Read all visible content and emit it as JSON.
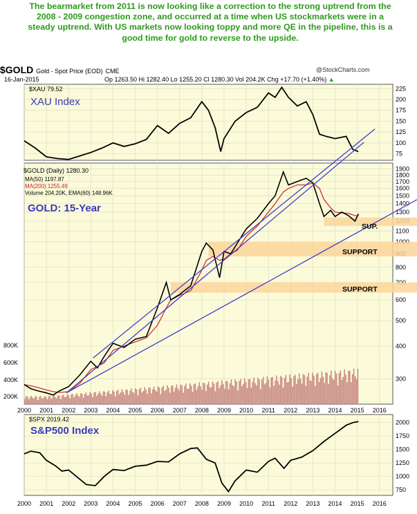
{
  "commentary": "The bearmarket from 2011 is now looking like a correction to the strong uptrend from the 2008 - 2009 congestion zone, and occurred at a time when US stockmarkets were in a steady uptrend. With US markets now looking toppy and more QE in the pipeline, this is a good time for gold to reverse to the upside.",
  "header": {
    "symbol": "$GOLD",
    "description": "Gold - Spot Price (EOD)",
    "exchange": "CME",
    "source": "@StockCharts.com",
    "date": "16-Jan-2015",
    "quote": "Op 1263.50  Hi 1282.40  Lo 1255.20  Cl 1280.30  Vol 204.2K  Chg +17.70 (+1.40%)",
    "quote_arrow": "▲"
  },
  "colors": {
    "panel_bg": "#fbfbda",
    "grid": "#ddddc4",
    "price": "#000000",
    "ma50": "#000000",
    "ma200": "#cc1f1f",
    "volume": "#c98a84",
    "trendline": "#3e3ec8",
    "support_band": "#fcd59a",
    "label_blue": "#3a3aba",
    "commentary": "#2e9a1e"
  },
  "chart_data": [
    {
      "type": "line",
      "panel": "XAU",
      "symbol_label": "$XAU 79.52",
      "title": "XAU Index",
      "yticks": [
        75,
        100,
        125,
        150,
        175,
        200,
        225
      ],
      "ylim": [
        60,
        235
      ],
      "x_years": [
        2000,
        2000.5,
        2001,
        2001.5,
        2002,
        2002.5,
        2003,
        2003.5,
        2004,
        2004.5,
        2005,
        2005.5,
        2006,
        2006.5,
        2007,
        2007.5,
        2008,
        2008.3,
        2008.6,
        2008.85,
        2009,
        2009.5,
        2010,
        2010.5,
        2011,
        2011.3,
        2011.6,
        2011.9,
        2012.3,
        2012.7,
        2013,
        2013.3,
        2013.6,
        2014,
        2014.5,
        2014.8,
        2015.05
      ],
      "values": [
        105,
        88,
        68,
        64,
        62,
        70,
        78,
        88,
        100,
        92,
        98,
        108,
        140,
        122,
        145,
        158,
        195,
        175,
        135,
        80,
        110,
        150,
        170,
        182,
        215,
        205,
        228,
        205,
        185,
        195,
        165,
        120,
        115,
        110,
        115,
        85,
        80
      ]
    },
    {
      "type": "line",
      "panel": "GOLD",
      "symbol_label": "$GOLD (Daily) 1280.30",
      "ma50_label": "MA(50) 1197.87",
      "ma200_label": "MA(200) 1255.49",
      "volume_label": "Volume 204.20K, EMA(60) 148.96K",
      "title": "GOLD: 15-Year",
      "log_scale": true,
      "yticks": [
        300,
        400,
        500,
        600,
        700,
        800,
        900,
        1000,
        1100,
        1200,
        1300,
        1400,
        1500,
        1600,
        1700,
        1800,
        1900
      ],
      "ylim": [
        240,
        2000
      ],
      "volume_ticks": [
        "200K",
        "400K",
        "600K",
        "800K"
      ],
      "x_years": [
        2000,
        2000.3,
        2000.6,
        2001,
        2001.3,
        2001.6,
        2002,
        2002.5,
        2003,
        2003.3,
        2003.6,
        2004,
        2004.5,
        2005,
        2005.5,
        2006,
        2006.4,
        2006.6,
        2007,
        2007.5,
        2008,
        2008.2,
        2008.5,
        2008.8,
        2009,
        2009.3,
        2009.6,
        2010,
        2010.5,
        2011,
        2011.3,
        2011.67,
        2011.9,
        2012.3,
        2012.7,
        2013,
        2013.3,
        2013.5,
        2013.8,
        2014,
        2014.3,
        2014.6,
        2014.9,
        2015.05
      ],
      "values": [
        285,
        275,
        270,
        265,
        260,
        270,
        280,
        310,
        350,
        330,
        365,
        410,
        395,
        425,
        435,
        560,
        700,
        600,
        630,
        680,
        920,
        990,
        930,
        730,
        920,
        900,
        990,
        1120,
        1230,
        1400,
        1500,
        1850,
        1650,
        1700,
        1750,
        1680,
        1400,
        1250,
        1320,
        1250,
        1300,
        1260,
        1200,
        1280
      ],
      "ma200_values": [
        285,
        282,
        278,
        272,
        268,
        266,
        268,
        288,
        325,
        335,
        345,
        385,
        400,
        415,
        430,
        480,
        560,
        600,
        625,
        650,
        780,
        850,
        880,
        850,
        860,
        900,
        930,
        1050,
        1150,
        1300,
        1400,
        1550,
        1600,
        1650,
        1650,
        1680,
        1600,
        1450,
        1350,
        1300,
        1290,
        1285,
        1260,
        1255
      ],
      "annotations": [
        {
          "text": "SUP.",
          "support_low": 1150,
          "support_high": 1240
        },
        {
          "text": "SUPPORT",
          "support_low": 880,
          "support_high": 1000
        },
        {
          "text": "SUPPORT",
          "support_low": 640,
          "support_high": 700
        }
      ]
    },
    {
      "type": "line",
      "panel": "SPX",
      "symbol_label": "$SPX 2019.42",
      "title": "S&P500 Index",
      "yticks": [
        750,
        1000,
        1250,
        1500,
        1750,
        2000
      ],
      "ylim": [
        650,
        2150
      ],
      "x_years": [
        2000,
        2000.3,
        2000.7,
        2001,
        2001.4,
        2001.7,
        2002,
        2002.5,
        2002.8,
        2003.2,
        2003.6,
        2004,
        2004.5,
        2005,
        2005.5,
        2006,
        2006.5,
        2007,
        2007.5,
        2007.8,
        2008.2,
        2008.6,
        2008.9,
        2009.2,
        2009.5,
        2010,
        2010.5,
        2011,
        2011.3,
        2011.7,
        2012,
        2012.5,
        2013,
        2013.5,
        2014,
        2014.5,
        2014.8,
        2015.05
      ],
      "values": [
        1420,
        1470,
        1440,
        1300,
        1200,
        1100,
        1120,
        950,
        850,
        830,
        1000,
        1130,
        1110,
        1190,
        1210,
        1280,
        1270,
        1420,
        1520,
        1530,
        1320,
        1250,
        880,
        720,
        920,
        1120,
        1080,
        1280,
        1340,
        1150,
        1300,
        1360,
        1480,
        1650,
        1800,
        1950,
        2000,
        2019
      ]
    }
  ],
  "x_axis": {
    "years": [
      "2000",
      "2001",
      "2002",
      "2003",
      "2004",
      "2005",
      "2006",
      "2007",
      "2008",
      "2009",
      "2010",
      "2011",
      "2012",
      "2013",
      "2014",
      "2015",
      "2016"
    ]
  }
}
